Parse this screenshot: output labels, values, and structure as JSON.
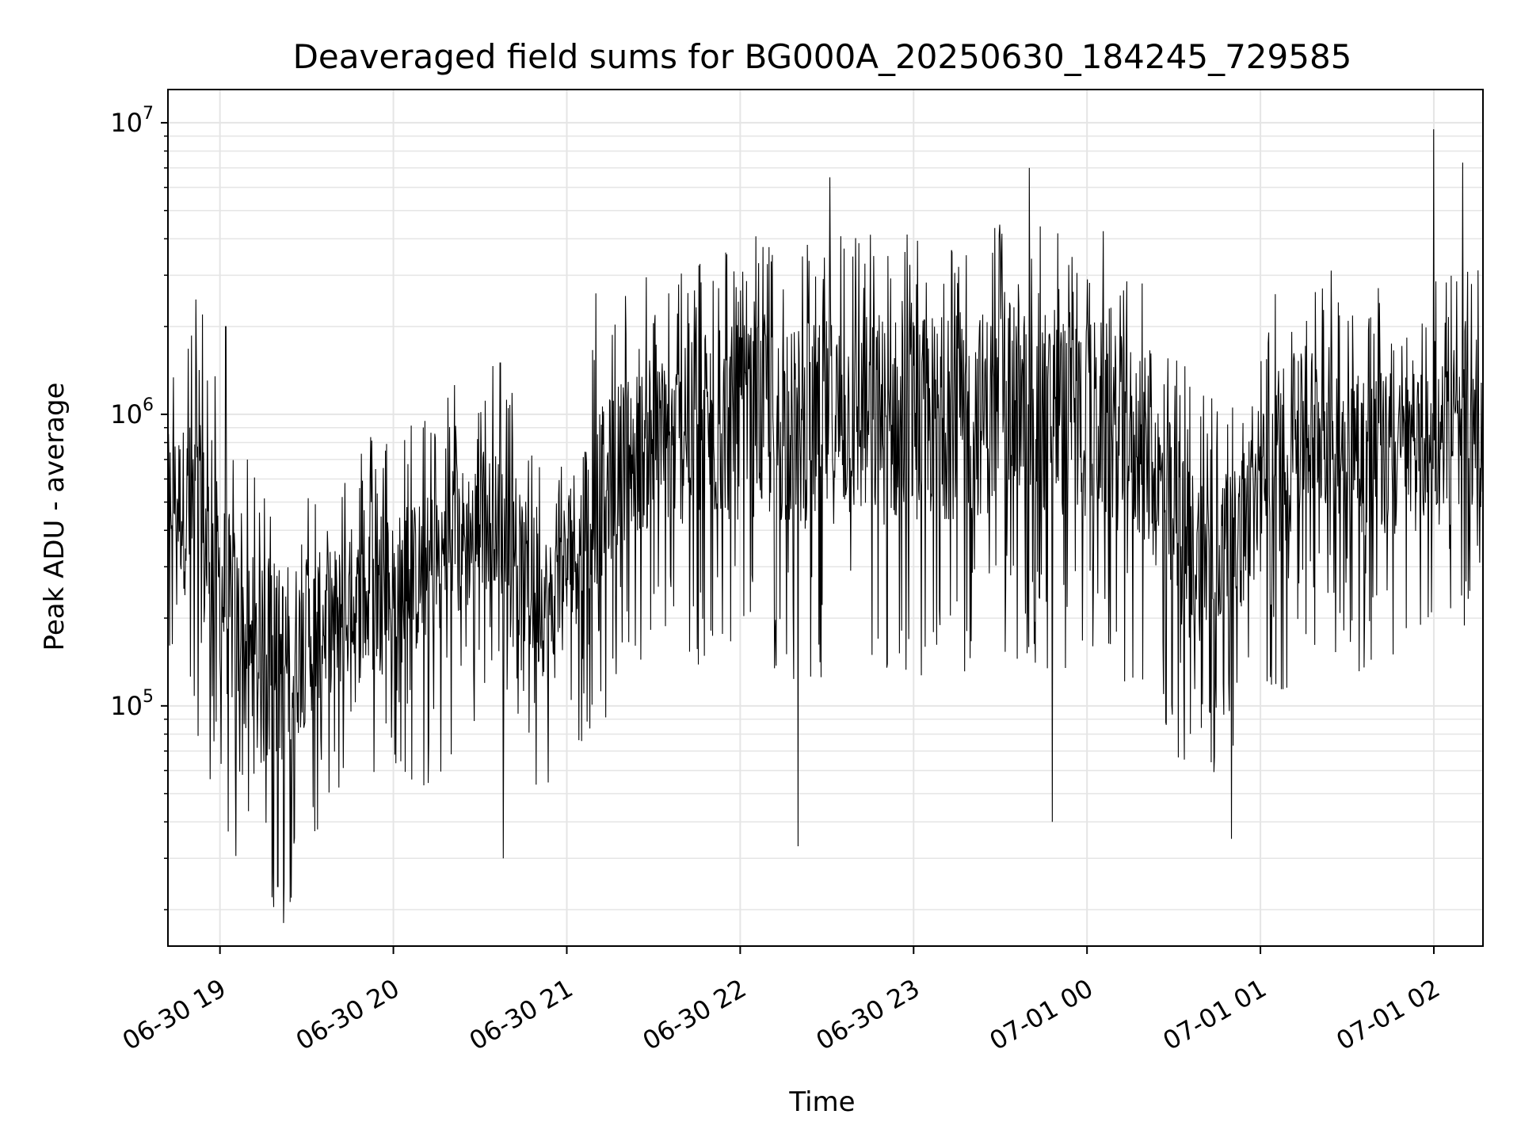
{
  "chart_data": {
    "type": "line",
    "title": "Deaveraged field sums for BG000A_20250630_184245_729585",
    "xlabel": "Time",
    "ylabel": "Peak ADU - average",
    "y_scale": "log",
    "grid": true,
    "legend": "none",
    "x_range": [
      "2025-06-30 18:42",
      "2025-07-01 02:17"
    ],
    "ylim": [
      15000,
      13000000
    ],
    "x_ticks": [
      {
        "time": "2025-06-30 19:00",
        "label": "06-30 19"
      },
      {
        "time": "2025-06-30 20:00",
        "label": "06-30 20"
      },
      {
        "time": "2025-06-30 21:00",
        "label": "06-30 21"
      },
      {
        "time": "2025-06-30 22:00",
        "label": "06-30 22"
      },
      {
        "time": "2025-06-30 23:00",
        "label": "06-30 23"
      },
      {
        "time": "2025-07-01 00:00",
        "label": "07-01 00"
      },
      {
        "time": "2025-07-01 01:00",
        "label": "07-01 01"
      },
      {
        "time": "2025-07-01 02:00",
        "label": "07-01 02"
      }
    ],
    "y_ticks": [
      {
        "value": 100000,
        "base": "10",
        "exp": "5"
      },
      {
        "value": 1000000,
        "base": "10",
        "exp": "6"
      },
      {
        "value": 10000000,
        "base": "10",
        "exp": "7"
      }
    ],
    "series_color": "#000000",
    "grid_color": "#e5e5e5",
    "envelope": [
      {
        "time": "2025-06-30 18:42",
        "low": 380000,
        "median": 560000,
        "high": 1100000
      },
      {
        "time": "2025-06-30 18:52",
        "low": 170000,
        "median": 420000,
        "high": 1500000
      },
      {
        "time": "2025-06-30 19:02",
        "low": 90000,
        "median": 230000,
        "high": 600000
      },
      {
        "time": "2025-06-30 19:12",
        "low": 45000,
        "median": 130000,
        "high": 350000
      },
      {
        "time": "2025-06-30 19:22",
        "low": 40000,
        "median": 140000,
        "high": 300000
      },
      {
        "time": "2025-06-30 19:35",
        "low": 90000,
        "median": 190000,
        "high": 380000
      },
      {
        "time": "2025-06-30 19:50",
        "low": 110000,
        "median": 220000,
        "high": 500000
      },
      {
        "time": "2025-06-30 20:05",
        "low": 120000,
        "median": 260000,
        "high": 560000
      },
      {
        "time": "2025-06-30 20:20",
        "low": 150000,
        "median": 340000,
        "high": 750000
      },
      {
        "time": "2025-06-30 20:35",
        "low": 250000,
        "median": 450000,
        "high": 900000
      },
      {
        "time": "2025-06-30 20:45",
        "low": 130000,
        "median": 280000,
        "high": 600000
      },
      {
        "time": "2025-06-30 20:55",
        "low": 100000,
        "median": 210000,
        "high": 450000
      },
      {
        "time": "2025-06-30 21:05",
        "low": 160000,
        "median": 420000,
        "high": 900000
      },
      {
        "time": "2025-06-30 21:20",
        "low": 300000,
        "median": 720000,
        "high": 1600000
      },
      {
        "time": "2025-06-30 21:35",
        "low": 350000,
        "median": 800000,
        "high": 1800000
      },
      {
        "time": "2025-06-30 21:50",
        "low": 300000,
        "median": 900000,
        "high": 2200000
      },
      {
        "time": "2025-06-30 22:05",
        "low": 350000,
        "median": 950000,
        "high": 2400000
      },
      {
        "time": "2025-06-30 22:20",
        "low": 300000,
        "median": 900000,
        "high": 2300000
      },
      {
        "time": "2025-06-30 22:35",
        "low": 320000,
        "median": 980000,
        "high": 2600000
      },
      {
        "time": "2025-06-30 22:50",
        "low": 300000,
        "median": 950000,
        "high": 2500000
      },
      {
        "time": "2025-06-30 23:05",
        "low": 320000,
        "median": 980000,
        "high": 2500000
      },
      {
        "time": "2025-06-30 23:20",
        "low": 330000,
        "median": 1000000,
        "high": 2600000
      },
      {
        "time": "2025-06-30 23:35",
        "low": 350000,
        "median": 1050000,
        "high": 2700000
      },
      {
        "time": "2025-06-30 23:50",
        "low": 320000,
        "median": 1000000,
        "high": 2600000
      },
      {
        "time": "2025-07-01 00:05",
        "low": 330000,
        "median": 950000,
        "high": 2500000
      },
      {
        "time": "2025-07-01 00:20",
        "low": 280000,
        "median": 750000,
        "high": 1800000
      },
      {
        "time": "2025-07-01 00:35",
        "low": 130000,
        "median": 330000,
        "high": 800000
      },
      {
        "time": "2025-07-01 00:50",
        "low": 150000,
        "median": 340000,
        "high": 650000
      },
      {
        "time": "2025-07-01 01:05",
        "low": 250000,
        "median": 650000,
        "high": 1500000
      },
      {
        "time": "2025-07-01 01:20",
        "low": 380000,
        "median": 950000,
        "high": 2000000
      },
      {
        "time": "2025-07-01 01:35",
        "low": 300000,
        "median": 750000,
        "high": 1700000
      },
      {
        "time": "2025-07-01 01:50",
        "low": 330000,
        "median": 700000,
        "high": 1600000
      },
      {
        "time": "2025-07-01 02:05",
        "low": 450000,
        "median": 850000,
        "high": 1900000
      },
      {
        "time": "2025-07-01 02:17",
        "low": 500000,
        "median": 800000,
        "high": 1800000
      }
    ],
    "notable_points": [
      {
        "time": "2025-06-30 18:54",
        "value": 2200000
      },
      {
        "time": "2025-06-30 19:02",
        "value": 2000000
      },
      {
        "time": "2025-06-30 19:20",
        "value": 24000
      },
      {
        "time": "2025-06-30 19:22",
        "value": 18000
      },
      {
        "time": "2025-06-30 20:37",
        "value": 1500000
      },
      {
        "time": "2025-06-30 20:38",
        "value": 30000
      },
      {
        "time": "2025-06-30 21:10",
        "value": 2600000
      },
      {
        "time": "2025-06-30 22:20",
        "value": 33000
      },
      {
        "time": "2025-06-30 22:31",
        "value": 6500000
      },
      {
        "time": "2025-06-30 23:40",
        "value": 7000000
      },
      {
        "time": "2025-06-30 23:48",
        "value": 40000
      },
      {
        "time": "2025-07-01 00:50",
        "value": 35000
      },
      {
        "time": "2025-07-01 02:00",
        "value": 9500000
      },
      {
        "time": "2025-07-01 02:10",
        "value": 7300000
      }
    ]
  }
}
